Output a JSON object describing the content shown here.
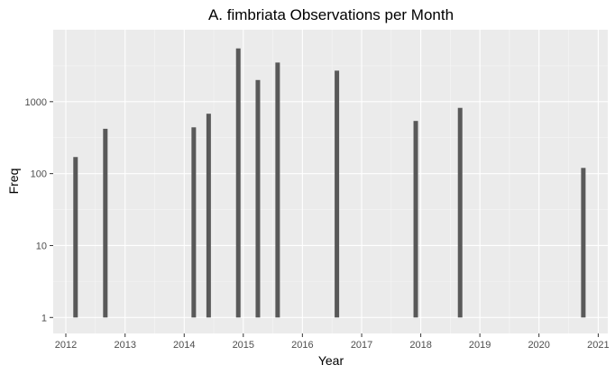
{
  "chart_data": {
    "type": "bar",
    "title": "A. fimbriata Observations per Month",
    "xlabel": "Year",
    "ylabel": "Freq",
    "y_scale": "log10",
    "ylim": [
      0.6,
      10000
    ],
    "xlim": [
      "2011-10-15",
      "2021-03-01"
    ],
    "x_ticks": [
      "2012",
      "2013",
      "2014",
      "2015",
      "2016",
      "2017",
      "2018",
      "2019",
      "2020",
      "2021"
    ],
    "y_ticks": [
      "1",
      "10",
      "100",
      "1000"
    ],
    "y_tick_values": [
      1,
      10,
      100,
      1000
    ],
    "grid": true,
    "colors": {
      "bar": "#595959",
      "panel": "#ebebeb",
      "grid_major": "#ffffff"
    },
    "series": [
      {
        "x": [
          "2012-03-01",
          "2012-09-01",
          "2014-03-01",
          "2014-06-01",
          "2014-12-01",
          "2015-04-01",
          "2015-08-01",
          "2016-08-01",
          "2017-12-01",
          "2018-09-01",
          "2020-10-01"
        ],
        "values": [
          170,
          420,
          440,
          680,
          5500,
          2000,
          3500,
          2700,
          540,
          820,
          120
        ]
      }
    ]
  }
}
